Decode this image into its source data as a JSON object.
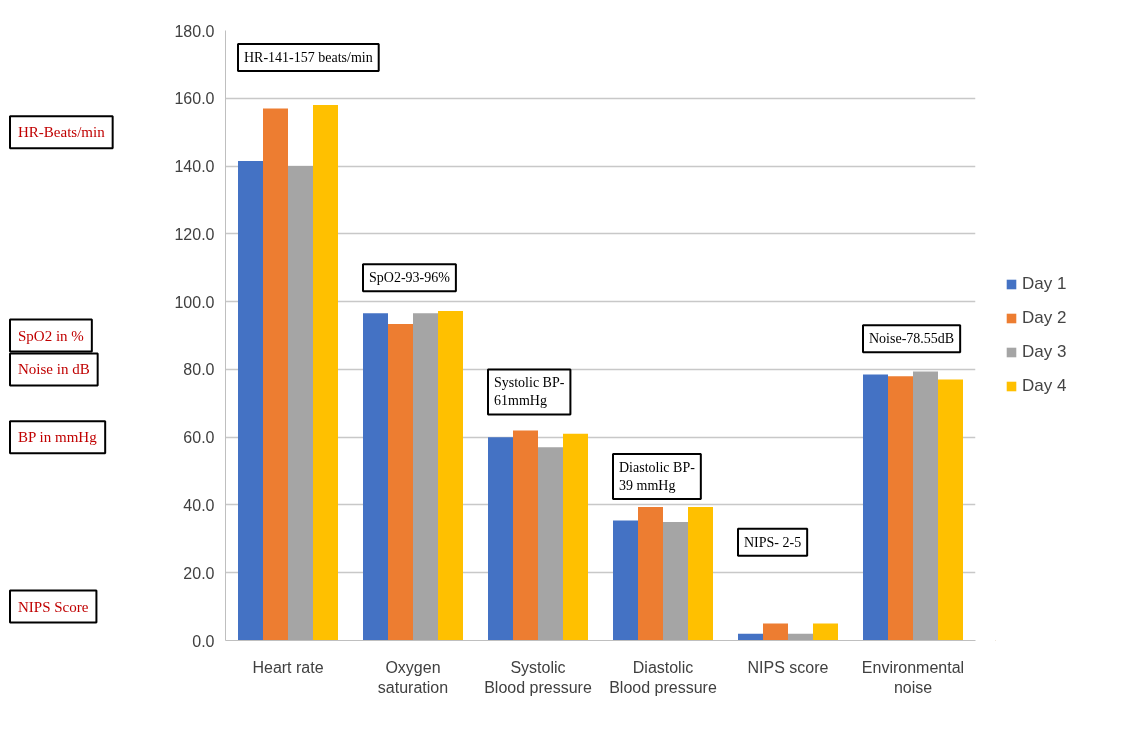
{
  "chart_data": {
    "type": "bar",
    "categories": [
      "Heart rate",
      "Oxygen saturation",
      "Systolic Blood pressure",
      "Diastolic Blood pressure",
      "NIPS score",
      "Environmental noise"
    ],
    "series": [
      {
        "name": "Day 1",
        "color": "#4472c4",
        "values": [
          141.5,
          96.6,
          60,
          35.4,
          2,
          78.5
        ]
      },
      {
        "name": "Day 2",
        "color": "#ed7d31",
        "values": [
          157,
          93.4,
          62,
          39.4,
          5,
          78
        ]
      },
      {
        "name": "Day 3",
        "color": "#a5a5a5",
        "values": [
          140,
          96.6,
          57,
          35,
          2,
          79.4
        ]
      },
      {
        "name": "Day 4",
        "color": "#ffc000",
        "values": [
          158,
          97.2,
          61,
          39.4,
          5,
          77
        ]
      }
    ],
    "ylim": [
      0,
      180
    ],
    "yticks": [
      {
        "value": 0,
        "label": "0.0"
      },
      {
        "value": 20,
        "label": "20.0"
      },
      {
        "value": 40,
        "label": "40.0"
      },
      {
        "value": 60,
        "label": "60.0"
      },
      {
        "value": 80,
        "label": "80.0"
      },
      {
        "value": 100,
        "label": "100.0"
      },
      {
        "value": 120,
        "label": "120.0"
      },
      {
        "value": 140,
        "label": "140.0"
      },
      {
        "value": 160,
        "label": "160.0"
      },
      {
        "value": 180,
        "label": "180.0"
      }
    ],
    "grid": "y",
    "legend": "right",
    "annotations": [
      "HR-141-157 beats/min",
      "SpO2-93-96%",
      "Systolic BP-\n61mmHg",
      "Diastolic BP-\n39  mmHg",
      "NIPS- 2-5",
      "Noise-78.55dB",
      "HR-Beats/min",
      "SpO2 in %",
      "Noise in dB",
      "BP in mmHg",
      "NIPS Score"
    ]
  }
}
